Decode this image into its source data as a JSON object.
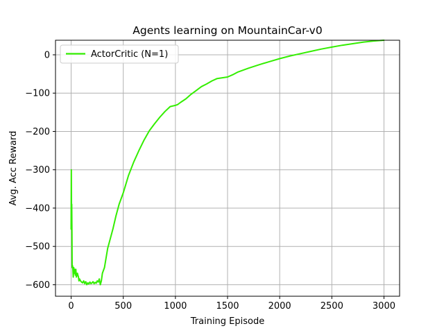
{
  "chart_data": {
    "type": "line",
    "title": "Agents learning on MountainCar-v0",
    "xlabel": "Training Episode",
    "ylabel": "Avg. Acc Reward",
    "xlim": [
      -150,
      3150
    ],
    "ylim": [
      -630,
      38
    ],
    "xticks": [
      0,
      500,
      1000,
      1500,
      2000,
      2500,
      3000
    ],
    "yticks": [
      -600,
      -500,
      -400,
      -300,
      -200,
      -100,
      0
    ],
    "xtick_labels": [
      "0",
      "500",
      "1000",
      "1500",
      "2000",
      "2500",
      "3000"
    ],
    "ytick_labels": [
      "−600",
      "−500",
      "−400",
      "−300",
      "−200",
      "−100",
      "0"
    ],
    "grid": true,
    "legend_position": "top-left",
    "series": [
      {
        "name": "ActorCritic (N=1)",
        "color": "#33ee00",
        "x": [
          0,
          2,
          4,
          6,
          8,
          10,
          13,
          16,
          20,
          25,
          30,
          35,
          40,
          45,
          50,
          55,
          60,
          65,
          70,
          75,
          80,
          90,
          100,
          110,
          120,
          130,
          140,
          150,
          160,
          170,
          180,
          190,
          200,
          210,
          220,
          230,
          240,
          250,
          260,
          270,
          280,
          290,
          300,
          320,
          350,
          380,
          400,
          430,
          460,
          500,
          550,
          600,
          650,
          700,
          750,
          800,
          850,
          900,
          950,
          1000,
          1020,
          1050,
          1100,
          1150,
          1200,
          1250,
          1300,
          1350,
          1400,
          1450,
          1500,
          1550,
          1600,
          1700,
          1800,
          1900,
          2000,
          2100,
          2200,
          2300,
          2400,
          2500,
          2600,
          2700,
          2800,
          2900,
          3000
        ],
        "values": [
          -455,
          -300,
          -420,
          -390,
          -460,
          -555,
          -550,
          -560,
          -580,
          -555,
          -570,
          -560,
          -575,
          -560,
          -580,
          -575,
          -570,
          -575,
          -580,
          -590,
          -585,
          -590,
          -593,
          -595,
          -590,
          -597,
          -592,
          -600,
          -595,
          -598,
          -593,
          -597,
          -595,
          -592,
          -597,
          -594,
          -596,
          -590,
          -593,
          -585,
          -600,
          -590,
          -570,
          -555,
          -505,
          -475,
          -455,
          -420,
          -390,
          -360,
          -315,
          -280,
          -250,
          -222,
          -198,
          -180,
          -163,
          -148,
          -135,
          -132,
          -130,
          -124,
          -115,
          -103,
          -93,
          -83,
          -76,
          -68,
          -62,
          -60,
          -58,
          -52,
          -45,
          -35,
          -26,
          -18,
          -10,
          -3,
          3,
          9,
          15,
          20,
          25,
          29,
          33,
          36,
          38
        ]
      }
    ]
  }
}
